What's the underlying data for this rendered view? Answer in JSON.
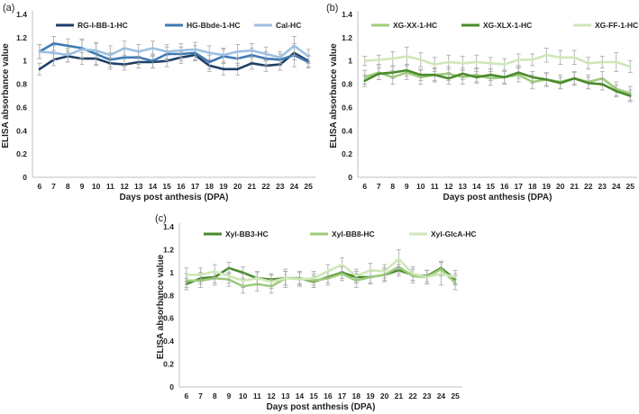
{
  "chart_data": [
    {
      "type": "line",
      "panel_label": "(a)",
      "xlabel": "Days post anthesis (DPA)",
      "ylabel": "ELISA absorbance value",
      "ylim": [
        0,
        1.4
      ],
      "yticks": [
        "0",
        "0.2",
        "0.4",
        "0.6",
        "0.8",
        "1",
        "1.2",
        "1.4"
      ],
      "categories": [
        "6",
        "7",
        "8",
        "9",
        "10",
        "11",
        "12",
        "13",
        "14",
        "15",
        "16",
        "17",
        "18",
        "19",
        "20",
        "21",
        "22",
        "23",
        "24",
        "25"
      ],
      "legend_position": "top",
      "series": [
        {
          "name": "RG-I-BB-1-HC",
          "color": "#1f3f66",
          "values": [
            0.93,
            1.01,
            1.04,
            1.02,
            1.02,
            0.98,
            0.97,
            0.99,
            0.99,
            1.0,
            1.03,
            1.05,
            0.96,
            0.93,
            0.93,
            0.98,
            0.96,
            0.97,
            1.07,
            1.0
          ],
          "errors": [
            0.05,
            0.05,
            0.05,
            0.05,
            0.05,
            0.05,
            0.05,
            0.05,
            0.05,
            0.05,
            0.05,
            0.05,
            0.05,
            0.05,
            0.05,
            0.05,
            0.05,
            0.05,
            0.06,
            0.05
          ]
        },
        {
          "name": "HG-Bbde-1-HC",
          "color": "#3f7ab2",
          "values": [
            1.08,
            1.15,
            1.13,
            1.11,
            1.06,
            1.01,
            1.03,
            1.03,
            1.0,
            1.06,
            1.06,
            1.07,
            0.99,
            1.04,
            1.02,
            1.05,
            1.02,
            1.01,
            1.05,
            0.99
          ],
          "errors": [
            0.06,
            0.06,
            0.06,
            0.08,
            0.1,
            0.06,
            0.08,
            0.06,
            0.06,
            0.06,
            0.06,
            0.06,
            0.06,
            0.06,
            0.06,
            0.06,
            0.06,
            0.05,
            0.1,
            0.05
          ]
        },
        {
          "name": "Cal-HC",
          "color": "#9cc0e2",
          "values": [
            1.08,
            1.07,
            1.05,
            1.1,
            1.09,
            1.05,
            1.11,
            1.08,
            1.11,
            1.08,
            1.09,
            1.1,
            1.07,
            1.05,
            1.08,
            1.09,
            1.06,
            1.03,
            1.13,
            1.04
          ],
          "errors": [
            0.06,
            0.06,
            0.06,
            0.08,
            0.06,
            0.08,
            0.06,
            0.06,
            0.06,
            0.06,
            0.06,
            0.06,
            0.06,
            0.06,
            0.06,
            0.06,
            0.06,
            0.05,
            0.08,
            0.06
          ]
        }
      ]
    },
    {
      "type": "line",
      "panel_label": "(b)",
      "xlabel": "Days post anthesis (DPA)",
      "ylabel": "ELISA absorbance value",
      "ylim": [
        0,
        1.4
      ],
      "yticks": [
        "0",
        "0.2",
        "0.4",
        "0.6",
        "0.8",
        "1",
        "1.2",
        "1.4"
      ],
      "categories": [
        "6",
        "7",
        "8",
        "9",
        "10",
        "11",
        "12",
        "13",
        "14",
        "15",
        "16",
        "17",
        "18",
        "19",
        "20",
        "21",
        "22",
        "23",
        "24",
        "25"
      ],
      "legend_position": "top",
      "series": [
        {
          "name": "XG-XX-1-HC",
          "color": "#9ccc7a",
          "values": [
            0.86,
            0.9,
            0.86,
            0.9,
            0.86,
            0.88,
            0.89,
            0.86,
            0.88,
            0.85,
            0.86,
            0.88,
            0.82,
            0.84,
            0.82,
            0.85,
            0.82,
            0.85,
            0.76,
            0.72
          ],
          "errors": [
            0.06,
            0.06,
            0.06,
            0.06,
            0.06,
            0.06,
            0.06,
            0.06,
            0.06,
            0.06,
            0.06,
            0.06,
            0.06,
            0.06,
            0.06,
            0.06,
            0.06,
            0.06,
            0.06,
            0.06
          ]
        },
        {
          "name": "XG-XLX-1-HC",
          "color": "#4a8a2c",
          "values": [
            0.83,
            0.89,
            0.9,
            0.92,
            0.88,
            0.88,
            0.85,
            0.89,
            0.86,
            0.88,
            0.86,
            0.9,
            0.86,
            0.84,
            0.81,
            0.85,
            0.81,
            0.8,
            0.74,
            0.7
          ],
          "errors": [
            0.05,
            0.05,
            0.05,
            0.05,
            0.05,
            0.05,
            0.05,
            0.05,
            0.05,
            0.05,
            0.05,
            0.05,
            0.05,
            0.05,
            0.05,
            0.05,
            0.05,
            0.05,
            0.05,
            0.05
          ]
        },
        {
          "name": "XG-FF-1-HC",
          "color": "#cfe7b8",
          "values": [
            1.0,
            1.01,
            1.02,
            1.04,
            1.01,
            0.97,
            0.99,
            0.98,
            0.99,
            0.98,
            0.97,
            1.01,
            1.01,
            1.05,
            1.03,
            1.03,
            0.98,
            0.99,
            0.99,
            0.95
          ],
          "errors": [
            0.04,
            0.04,
            0.06,
            0.08,
            0.06,
            0.06,
            0.06,
            0.06,
            0.06,
            0.05,
            0.05,
            0.05,
            0.05,
            0.06,
            0.06,
            0.06,
            0.05,
            0.05,
            0.08,
            0.05
          ]
        }
      ]
    },
    {
      "type": "line",
      "panel_label": "(c)",
      "xlabel": "Days post anthesis (DPA)",
      "ylabel": "ELISA absorbance value",
      "ylim": [
        0,
        1.4
      ],
      "yticks": [
        "0",
        "0.2",
        "0.4",
        "0.6",
        "0.8",
        "1",
        "1.2",
        "1.4"
      ],
      "categories": [
        "6",
        "7",
        "8",
        "9",
        "10",
        "11",
        "12",
        "13",
        "14",
        "15",
        "16",
        "17",
        "18",
        "19",
        "20",
        "21",
        "22",
        "23",
        "24",
        "25"
      ],
      "legend_position": "top",
      "series": [
        {
          "name": "Xyl-BB3-HC",
          "color": "#4a8a2c",
          "values": [
            0.9,
            0.95,
            0.96,
            1.04,
            1.0,
            0.95,
            0.94,
            0.95,
            0.95,
            0.92,
            0.96,
            1.0,
            0.96,
            0.96,
            0.98,
            1.02,
            0.98,
            0.97,
            1.04,
            0.94
          ],
          "errors": [
            0.05,
            0.05,
            0.05,
            0.05,
            0.05,
            0.05,
            0.05,
            0.08,
            0.05,
            0.05,
            0.05,
            0.05,
            0.05,
            0.05,
            0.05,
            0.05,
            0.05,
            0.05,
            0.06,
            0.05
          ]
        },
        {
          "name": "Xyl-BB8-HC",
          "color": "#9ccc7a",
          "values": [
            0.93,
            0.93,
            0.95,
            0.94,
            0.88,
            0.9,
            0.88,
            0.95,
            0.95,
            0.93,
            0.95,
            0.99,
            0.93,
            0.96,
            0.98,
            1.05,
            0.97,
            0.96,
            1.03,
            0.91
          ],
          "errors": [
            0.06,
            0.06,
            0.06,
            0.06,
            0.06,
            0.06,
            0.06,
            0.06,
            0.06,
            0.06,
            0.06,
            0.06,
            0.06,
            0.06,
            0.06,
            0.06,
            0.06,
            0.06,
            0.06,
            0.06
          ]
        },
        {
          "name": "Xyl-GlcA-HC",
          "color": "#cfe7b8",
          "values": [
            0.98,
            0.98,
            1.01,
            0.97,
            0.93,
            0.95,
            0.92,
            0.95,
            0.94,
            0.95,
            1.01,
            1.07,
            0.97,
            1.02,
            1.01,
            1.12,
            0.99,
            0.96,
            0.99,
            0.96
          ],
          "errors": [
            0.06,
            0.06,
            0.06,
            0.06,
            0.06,
            0.06,
            0.06,
            0.06,
            0.06,
            0.06,
            0.06,
            0.06,
            0.06,
            0.06,
            0.06,
            0.08,
            0.06,
            0.06,
            0.1,
            0.06
          ]
        }
      ]
    }
  ]
}
